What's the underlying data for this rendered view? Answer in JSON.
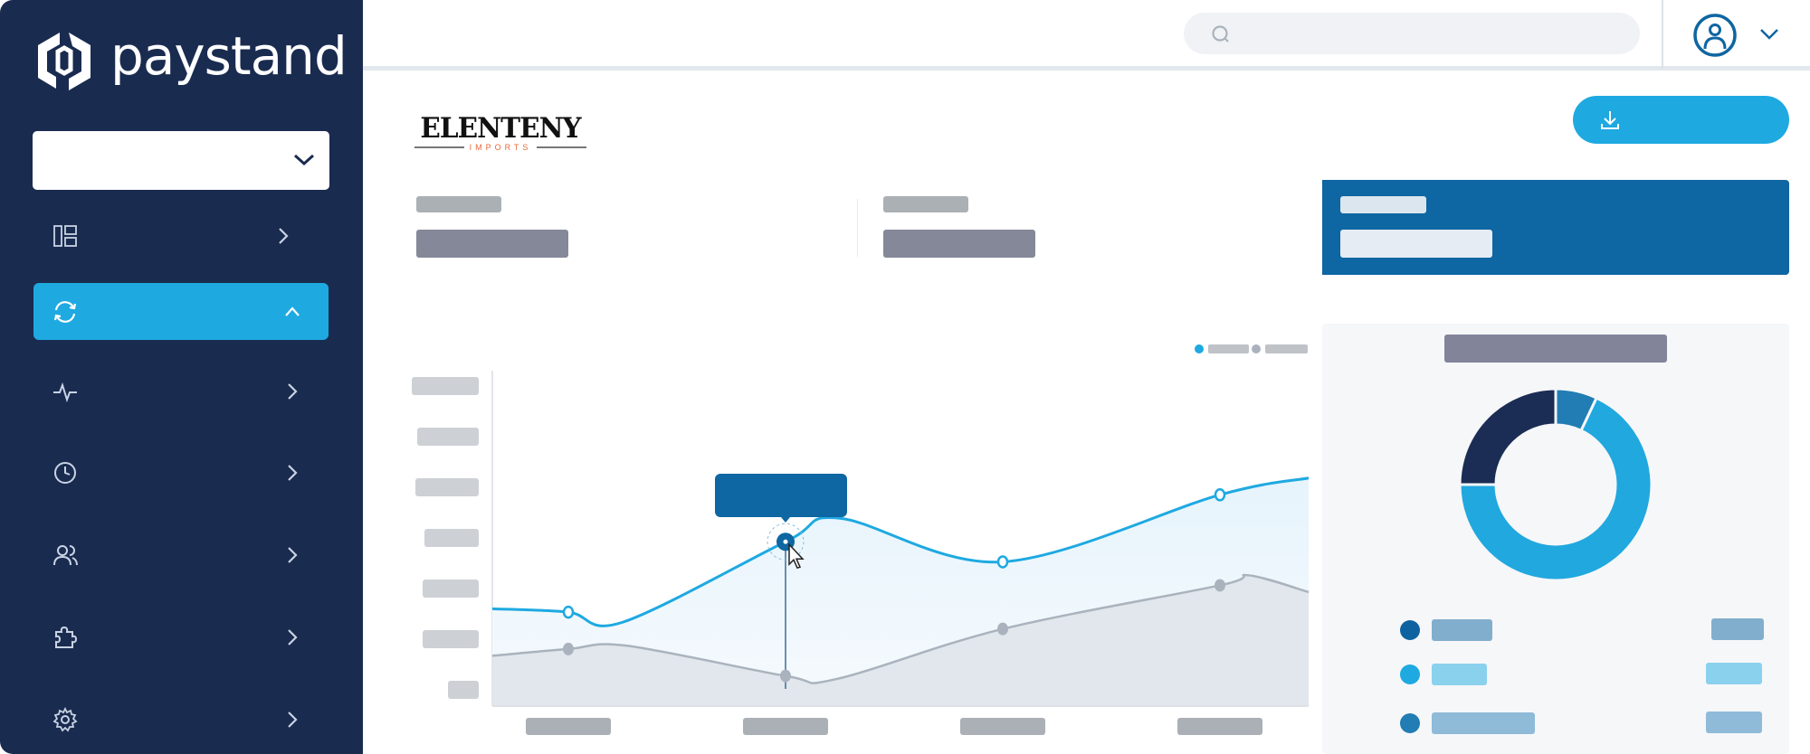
{
  "sidebar": {
    "brand": "paystand",
    "nav_icons": [
      "dashboard-icon",
      "sync-icon",
      "activity-icon",
      "clock-icon",
      "users-icon",
      "puzzle-icon",
      "gear-icon"
    ],
    "active_index": 1
  },
  "header": {
    "search_icon": "search-icon",
    "avatar_icon": "user-circle-icon"
  },
  "main": {
    "customer_logo": {
      "name": "ELENTENY",
      "tagline": "IMPORTS"
    },
    "download_icon": "download-icon"
  },
  "colors": {
    "sidebar": "#1a2b50",
    "accent": "#1ea9e1",
    "primary": "#0e66a2",
    "gray_series": "#aab3bd"
  },
  "chart_data": [
    {
      "type": "area",
      "categories": [
        "",
        "",
        "",
        ""
      ],
      "selected_category_index": 1,
      "series": [
        {
          "color": "#1ea9e1",
          "x": [
            -0.36,
            0,
            0.25,
            1,
            1.25,
            2,
            3,
            3.42
          ],
          "y": [
            29,
            28,
            25,
            49,
            56,
            43,
            63,
            68
          ],
          "markers": [
            0,
            1,
            2,
            3
          ]
        },
        {
          "color": "#aab3bd",
          "x": [
            -0.36,
            0,
            0.27,
            1,
            1.23,
            2,
            3,
            3.13,
            3.42
          ],
          "y": [
            15,
            17,
            18,
            9,
            8,
            23,
            36,
            39,
            34
          ],
          "markers": [
            0,
            1,
            2,
            3
          ]
        }
      ],
      "ylim": [
        0,
        100
      ],
      "y_tick_count": 7,
      "legend": "top-right",
      "grid": false
    },
    {
      "type": "pie",
      "donut": true,
      "slices": [
        {
          "value": 25,
          "color": "#1b2d55"
        },
        {
          "value": 7,
          "color": "#217db3"
        },
        {
          "value": 68,
          "color": "#20a8df"
        }
      ],
      "legend": "bottom",
      "legend_dot_colors": [
        "#0e62a0",
        "#1ea9e1",
        "#217db3"
      ]
    }
  ]
}
